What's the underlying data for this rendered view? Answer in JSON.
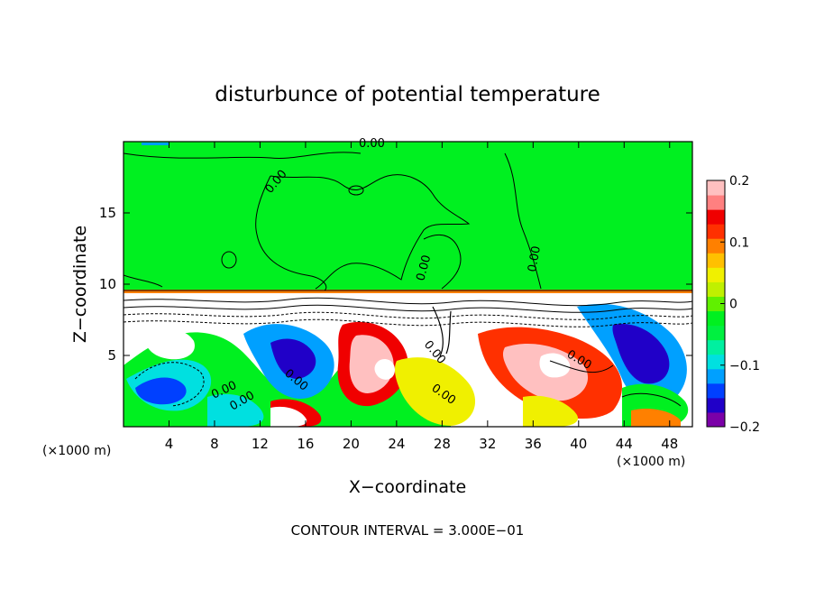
{
  "chart_data": {
    "type": "heatmap",
    "title": "disturbunce of potential temperature",
    "xlabel": "X−coordinate",
    "ylabel": "Z−coordinate",
    "x_unit_left": "(×1000 m)",
    "x_unit_right": "(×1000 m)",
    "footer": "CONTOUR INTERVAL = 3.000E−01",
    "xlim": [
      0,
      50
    ],
    "ylim": [
      0,
      20
    ],
    "x_ticks": [
      "4",
      "8",
      "12",
      "16",
      "20",
      "24",
      "28",
      "32",
      "36",
      "40",
      "44",
      "48"
    ],
    "x_tick_values": [
      4,
      8,
      12,
      16,
      20,
      24,
      28,
      32,
      36,
      40,
      44,
      48
    ],
    "y_ticks": [
      "5",
      "10",
      "15"
    ],
    "y_tick_values": [
      5,
      10,
      15
    ],
    "colorbar": {
      "range": [
        -0.2,
        0.2
      ],
      "tick_labels": [
        "0.2",
        "0.1",
        "0",
        "−0.1",
        "−0.2"
      ],
      "tick_values": [
        0.2,
        0.1,
        0,
        -0.1,
        -0.2
      ],
      "colors": [
        "#7b00a8",
        "#2000c8",
        "#0040ff",
        "#00a0ff",
        "#00e0e0",
        "#00f0a0",
        "#00f040",
        "#00f020",
        "#60f000",
        "#c0f000",
        "#f0f000",
        "#ffc000",
        "#ff8000",
        "#ff3000",
        "#f00000",
        "#ff8080",
        "#ffc0c0"
      ]
    },
    "contour_labels": [
      "0.00",
      "0.00",
      "0.00",
      "0.00",
      "0.00",
      "0.00",
      "0.00",
      "0.00",
      "0.00",
      "0.00"
    ],
    "upper_layer": {
      "z_range": [
        9.5,
        20
      ],
      "value": 0
    },
    "lower_layer": {
      "z_range": [
        0,
        9.5
      ]
    }
  }
}
